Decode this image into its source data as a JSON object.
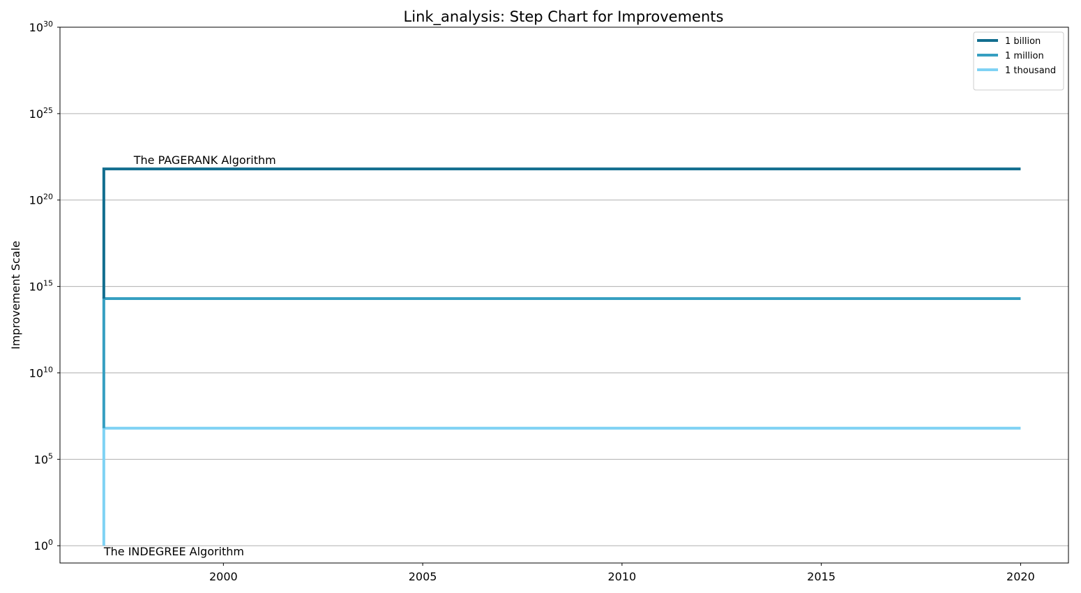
{
  "chart_data": {
    "type": "line",
    "step": true,
    "title": "Link_analysis: Step Chart for Improvements",
    "xlabel": "",
    "ylabel": "Improvement Scale",
    "x_ticks": [
      2000,
      2005,
      2010,
      2015,
      2020
    ],
    "xlim": [
      1995.9,
      2021.2
    ],
    "y_scale": "log",
    "ylim": [
      0.1,
      1e+30
    ],
    "y_ticks": [
      {
        "exp": 0,
        "base": "10",
        "sup": "0"
      },
      {
        "exp": 5,
        "base": "10",
        "sup": "5"
      },
      {
        "exp": 10,
        "base": "10",
        "sup": "10"
      },
      {
        "exp": 15,
        "base": "10",
        "sup": "15"
      },
      {
        "exp": 20,
        "base": "10",
        "sup": "20"
      },
      {
        "exp": 25,
        "base": "10",
        "sup": "25"
      },
      {
        "exp": 30,
        "base": "10",
        "sup": "30"
      }
    ],
    "grid": "y",
    "legend_position": "top-right",
    "series": [
      {
        "name": "1 billion",
        "color": "#126e8f",
        "x": [
          1997,
          2020
        ],
        "y_exp_start": 14.3,
        "y_exp_end": 21.8
      },
      {
        "name": "1 million",
        "color": "#369fc1",
        "x": [
          1997,
          2020
        ],
        "y_exp_start": 6.8,
        "y_exp_end": 14.3
      },
      {
        "name": "1 thousand",
        "color": "#7fd2f4",
        "x": [
          1997,
          2020
        ],
        "y_exp_start": 0,
        "y_exp_end": 6.8
      }
    ],
    "annotations": [
      {
        "text": "The PAGERANK Algorithm",
        "x": 1997.75,
        "y_exp": 21.8,
        "placement": "above"
      },
      {
        "text": "The INDEGREE Algorithm",
        "x": 1997,
        "y_exp": 0,
        "placement": "below"
      }
    ]
  }
}
